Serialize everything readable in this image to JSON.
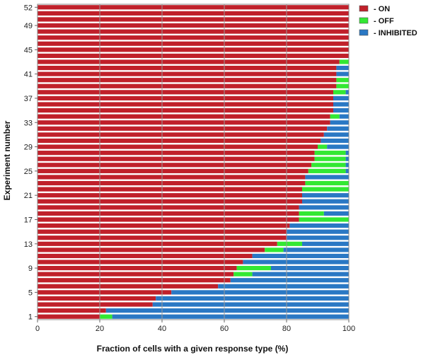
{
  "chart_data": {
    "type": "bar",
    "orientation": "horizontal",
    "stacked": true,
    "xlabel": "Fraction of cells with a given response type (%)",
    "ylabel": "Experiment number",
    "xlim": [
      0,
      100
    ],
    "xticks": [
      0,
      20,
      40,
      60,
      80,
      100
    ],
    "yticks": [
      1,
      5,
      9,
      13,
      17,
      21,
      25,
      29,
      33,
      37,
      41,
      45,
      49,
      52
    ],
    "grid": "vertical",
    "legend_position": "top-right",
    "categories": [
      1,
      2,
      3,
      4,
      5,
      6,
      7,
      8,
      9,
      10,
      11,
      12,
      13,
      14,
      15,
      16,
      17,
      18,
      19,
      20,
      21,
      22,
      23,
      24,
      25,
      26,
      27,
      28,
      29,
      30,
      31,
      32,
      33,
      34,
      35,
      36,
      37,
      38,
      39,
      40,
      41,
      42,
      43,
      44,
      45,
      46,
      47,
      48,
      49,
      50,
      51,
      52
    ],
    "series": [
      {
        "name": "- ON",
        "color": "#c0202a",
        "values": [
          20,
          22,
          37,
          38,
          43,
          58,
          62,
          63,
          64,
          66,
          69,
          73,
          77,
          80,
          80,
          81,
          84,
          84,
          84,
          85,
          85,
          85,
          86,
          86,
          87,
          88,
          89,
          89,
          90,
          91,
          92,
          93,
          94,
          94,
          95,
          95,
          95,
          95,
          96,
          96,
          96,
          96,
          97,
          100,
          100,
          100,
          100,
          100,
          100,
          100,
          100,
          100
        ]
      },
      {
        "name": "- OFF",
        "color": "#33e833",
        "values": [
          4,
          0,
          0,
          0,
          0,
          0,
          0,
          6,
          11,
          0,
          0,
          6,
          8,
          0,
          0,
          0,
          16,
          8,
          0,
          0,
          0,
          15,
          14,
          0,
          12,
          11,
          10,
          10,
          3,
          0,
          0,
          0,
          0,
          3,
          0,
          0,
          0,
          4,
          4,
          4,
          0,
          0,
          3,
          0,
          0,
          0,
          0,
          0,
          0,
          0,
          0,
          0
        ]
      },
      {
        "name": "- INHIBITED",
        "color": "#2a78c4",
        "values": [
          76,
          78,
          63,
          62,
          57,
          42,
          38,
          31,
          25,
          34,
          31,
          21,
          15,
          20,
          20,
          19,
          0,
          8,
          16,
          15,
          15,
          0,
          0,
          14,
          1,
          1,
          1,
          1,
          7,
          9,
          8,
          7,
          6,
          3,
          5,
          5,
          5,
          1,
          0,
          0,
          4,
          4,
          0,
          0,
          0,
          0,
          0,
          0,
          0,
          0,
          0,
          0
        ]
      }
    ]
  }
}
